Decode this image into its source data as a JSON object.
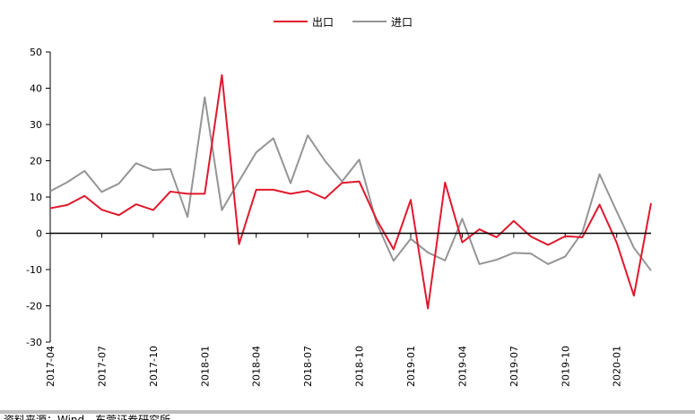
{
  "chart_data": {
    "type": "line",
    "title": "",
    "xlabel": "",
    "ylabel": "",
    "ylim": [
      -30,
      50
    ],
    "yticks": [
      -30,
      -20,
      -10,
      0,
      10,
      20,
      30,
      40,
      50
    ],
    "grid": false,
    "legend_position": "top-center",
    "x": [
      "2017-04",
      "2017-05",
      "2017-06",
      "2017-07",
      "2017-08",
      "2017-09",
      "2017-10",
      "2017-11",
      "2017-12",
      "2018-01",
      "2018-02",
      "2018-03",
      "2018-04",
      "2018-05",
      "2018-06",
      "2018-07",
      "2018-08",
      "2018-09",
      "2018-10",
      "2018-11",
      "2018-12",
      "2019-01",
      "2019-02",
      "2019-03",
      "2019-04",
      "2019-05",
      "2019-06",
      "2019-07",
      "2019-08",
      "2019-09",
      "2019-10",
      "2019-11",
      "2019-12",
      "2020-01",
      "2020-02",
      "2020-03"
    ],
    "xtick_labels": [
      "2017-04",
      "2017-07",
      "2017-10",
      "2018-01",
      "2018-04",
      "2018-07",
      "2018-10",
      "2019-01",
      "2019-04",
      "2019-07",
      "2019-10",
      "2020-01"
    ],
    "series": [
      {
        "name": "出口",
        "color": "#e0192d",
        "values": [
          6.9,
          7.8,
          10.3,
          6.5,
          5.0,
          8.0,
          6.4,
          11.5,
          10.9,
          10.9,
          43.6,
          -3.0,
          12.0,
          12.0,
          10.9,
          11.7,
          9.6,
          13.9,
          14.3,
          3.9,
          -4.4,
          9.2,
          -20.7,
          14.0,
          -2.5,
          1.1,
          -1.1,
          3.4,
          -0.9,
          -3.2,
          -0.8,
          -1.1,
          7.9,
          -2.6,
          -17.2,
          8.3
        ]
      },
      {
        "name": "进口",
        "color": "#959595",
        "values": [
          11.6,
          14.1,
          17.2,
          11.4,
          13.7,
          19.3,
          17.4,
          17.7,
          4.5,
          37.5,
          6.4,
          14.4,
          22.3,
          26.2,
          13.8,
          27.0,
          20.0,
          14.3,
          20.3,
          3.0,
          -7.6,
          -1.5,
          -5.3,
          -7.5,
          4.0,
          -8.5,
          -7.3,
          -5.4,
          -5.6,
          -8.5,
          -6.4,
          0.3,
          16.3,
          6.0,
          -4.0,
          -10.3
        ]
      }
    ]
  },
  "footer": {
    "source_text": "资料来源：Wind，东莞证券研究所"
  }
}
